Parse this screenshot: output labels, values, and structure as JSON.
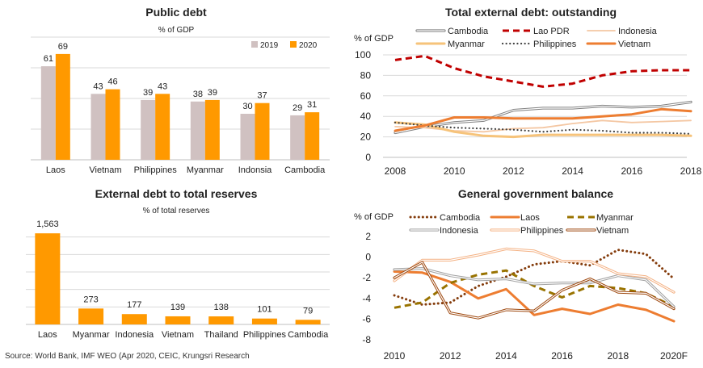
{
  "source": "Source: World Bank, IMF WEO (Apr 2020, CEIC, Krungsri Research",
  "chart_data": [
    {
      "id": "public-debt",
      "type": "bar",
      "title": "Public debt",
      "subtitle": "% of GDP",
      "categories": [
        "Laos",
        "Vietnam",
        "Philippines",
        "Myanmar",
        "Indonsia",
        "Cambodia"
      ],
      "series": [
        {
          "name": "2019",
          "color": "#d0c1c1",
          "values": [
            61,
            43,
            39,
            38,
            30,
            29
          ]
        },
        {
          "name": "2020",
          "color": "#ff9900",
          "values": [
            69,
            46,
            43,
            39,
            37,
            31
          ]
        }
      ],
      "ylim": [
        0,
        80
      ],
      "grid": true,
      "legend": "top-right"
    },
    {
      "id": "external-debt-reserves",
      "type": "bar",
      "title": "External debt to total reserves",
      "subtitle": "% of total reserves",
      "categories": [
        "Laos",
        "Myanmar",
        "Indonesia",
        "Vietnam",
        "Thailand",
        "Philippines",
        "Cambodia"
      ],
      "series": [
        {
          "color": "#ff9900",
          "values": [
            1563,
            273,
            177,
            139,
            138,
            101,
            79
          ],
          "labels": [
            "1,563",
            "273",
            "177",
            "139",
            "138",
            "101",
            "79"
          ]
        }
      ],
      "ylim": [
        0,
        1800
      ],
      "grid": true,
      "legend": "none"
    },
    {
      "id": "external-debt-outstanding",
      "type": "line",
      "title": "Total external debt: outstanding",
      "ylabel": "% of GDP",
      "x": [
        2008,
        2009,
        2010,
        2011,
        2012,
        2013,
        2014,
        2015,
        2016,
        2017,
        2018
      ],
      "xticks": [
        "2008",
        "2010",
        "2012",
        "2014",
        "2016",
        "2018"
      ],
      "yticks": [
        0,
        20,
        40,
        60,
        80,
        100
      ],
      "ylim": [
        0,
        100
      ],
      "grid": true,
      "legend": "top",
      "series": [
        {
          "name": "Cambodia",
          "style": "double",
          "color": "#808080",
          "values": [
            24,
            30,
            34,
            36,
            46,
            48,
            48,
            50,
            49,
            50,
            54
          ]
        },
        {
          "name": "Lao PDR",
          "style": "dashed",
          "color": "#c00000",
          "values": [
            95,
            99,
            87,
            79,
            74,
            69,
            72,
            80,
            84,
            85,
            85
          ]
        },
        {
          "name": "Indonesia",
          "style": "solid-thin",
          "color": "#f4c7a3",
          "values": [
            30,
            29,
            26,
            25,
            28,
            29,
            33,
            36,
            34,
            35,
            36
          ]
        },
        {
          "name": "Myanmar",
          "style": "solid-thick",
          "color": "#f6c37a",
          "values": [
            34,
            32,
            25,
            21,
            20,
            22,
            22,
            22,
            22,
            22,
            21
          ]
        },
        {
          "name": "Philippines",
          "style": "dotted",
          "color": "#404040",
          "values": [
            34,
            31,
            29,
            28,
            27,
            25,
            27,
            26,
            24,
            24,
            23
          ]
        },
        {
          "name": "Vietnam",
          "style": "solid-thick",
          "color": "#ed7d31",
          "values": [
            26,
            31,
            39,
            39,
            38,
            38,
            38,
            40,
            42,
            47,
            45
          ]
        }
      ]
    },
    {
      "id": "government-balance",
      "type": "line",
      "title": "General government balance",
      "ylabel": "% of GDP",
      "x": [
        2010,
        2011,
        2012,
        2013,
        2014,
        2015,
        2016,
        2017,
        2018,
        2019,
        2020
      ],
      "xticks": [
        "2010",
        "2012",
        "2014",
        "2016",
        "2018",
        "2020F"
      ],
      "yticks": [
        2,
        0,
        -2,
        -4,
        -6,
        -8
      ],
      "ylim": [
        -8,
        2
      ],
      "grid": false,
      "legend": "top",
      "series": [
        {
          "name": "Cambodia",
          "style": "dotted-thick",
          "color": "#843c0c",
          "values": [
            -3.7,
            -4.6,
            -4.4,
            -2.8,
            -1.9,
            -0.7,
            -0.4,
            -0.8,
            0.7,
            0.3,
            -2.1
          ]
        },
        {
          "name": "Laos",
          "style": "solid-thick",
          "color": "#ed7d31",
          "values": [
            -1.4,
            -1.5,
            -2.4,
            -4.0,
            -3.1,
            -5.6,
            -5.0,
            -5.5,
            -4.6,
            -5.1,
            -6.2
          ]
        },
        {
          "name": "Myanmar",
          "style": "dashed",
          "color": "#997300",
          "values": [
            -4.9,
            -4.4,
            -2.5,
            -1.7,
            -1.3,
            -2.8,
            -3.9,
            -2.8,
            -3.0,
            -3.5,
            -4.8
          ]
        },
        {
          "name": "Indonesia",
          "style": "double",
          "color": "#a0a0a0",
          "values": [
            -1.2,
            -1.1,
            -1.8,
            -2.2,
            -2.1,
            -2.6,
            -2.5,
            -2.5,
            -1.8,
            -2.2,
            -4.8
          ]
        },
        {
          "name": "Philippines",
          "style": "double",
          "color": "#f4b183",
          "values": [
            -2.3,
            -0.3,
            -0.3,
            0.2,
            0.8,
            0.6,
            -0.4,
            -0.4,
            -1.6,
            -1.9,
            -3.4
          ]
        },
        {
          "name": "Vietnam",
          "style": "double",
          "color": "#9e480e",
          "values": [
            -2.0,
            -0.5,
            -5.4,
            -5.9,
            -5.1,
            -5.2,
            -3.2,
            -2.1,
            -3.4,
            -3.5,
            -5.0
          ]
        }
      ]
    }
  ]
}
